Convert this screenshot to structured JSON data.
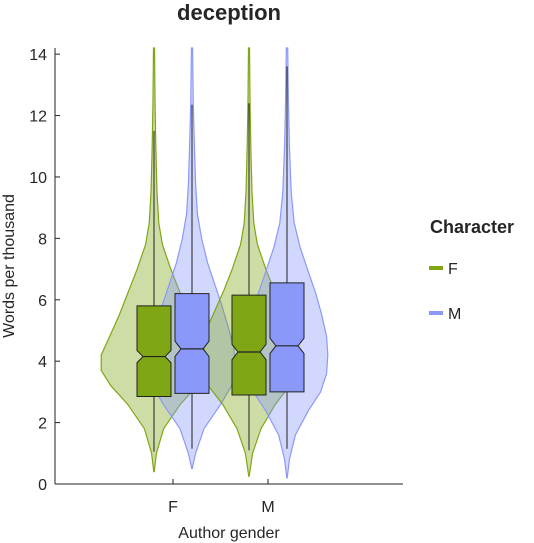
{
  "chart_data": {
    "type": "violin",
    "title": "deception",
    "xlabel": "Author gender",
    "ylabel": "Words per thousand",
    "ylim": [
      0,
      14.2
    ],
    "yticks": [
      0,
      2,
      4,
      6,
      8,
      10,
      12,
      14
    ],
    "categories": [
      "F",
      "M"
    ],
    "legend": {
      "title": "Character",
      "placement": "right",
      "entries": [
        {
          "label": "F",
          "color": "#7FA614"
        },
        {
          "label": "M",
          "color": "#8A98FA"
        }
      ]
    },
    "groups": [
      {
        "author": "F",
        "character": "F",
        "color": "#7FA614",
        "box": {
          "q1": 2.85,
          "median": 4.15,
          "q3": 5.8,
          "notch_low": 3.95,
          "notch_high": 4.35,
          "whisker_low": 1.05,
          "whisker_high": 11.5
        },
        "violin_max": 14.2,
        "violin": [
          [
            0.4,
            0.002
          ],
          [
            1.0,
            0.02
          ],
          [
            1.8,
            0.08
          ],
          [
            2.6,
            0.22
          ],
          [
            3.2,
            0.36
          ],
          [
            3.7,
            0.44
          ],
          [
            4.2,
            0.44
          ],
          [
            4.8,
            0.37
          ],
          [
            5.5,
            0.29
          ],
          [
            6.2,
            0.22
          ],
          [
            7.0,
            0.14
          ],
          [
            7.8,
            0.07
          ],
          [
            8.5,
            0.04
          ],
          [
            9.5,
            0.025
          ],
          [
            11.0,
            0.015
          ],
          [
            12.5,
            0.008
          ],
          [
            14.2,
            0.004
          ]
        ]
      },
      {
        "author": "F",
        "character": "M",
        "color": "#8A98FA",
        "box": {
          "q1": 2.95,
          "median": 4.4,
          "q3": 6.2,
          "notch_low": 4.15,
          "notch_high": 4.65,
          "whisker_low": 1.15,
          "whisker_high": 12.35
        },
        "violin_max": 14.2,
        "violin": [
          [
            0.5,
            0.002
          ],
          [
            1.0,
            0.03
          ],
          [
            1.8,
            0.1
          ],
          [
            2.6,
            0.24
          ],
          [
            3.2,
            0.33
          ],
          [
            3.8,
            0.36
          ],
          [
            4.4,
            0.35
          ],
          [
            5.0,
            0.31
          ],
          [
            5.8,
            0.25
          ],
          [
            6.5,
            0.19
          ],
          [
            7.2,
            0.13
          ],
          [
            8.0,
            0.08
          ],
          [
            8.8,
            0.045
          ],
          [
            9.8,
            0.03
          ],
          [
            11.0,
            0.02
          ],
          [
            12.5,
            0.01
          ],
          [
            14.2,
            0.005
          ]
        ]
      },
      {
        "author": "M",
        "character": "F",
        "color": "#7FA614",
        "box": {
          "q1": 2.9,
          "median": 4.3,
          "q3": 6.15,
          "notch_low": 4.05,
          "notch_high": 4.55,
          "whisker_low": 1.1,
          "whisker_high": 12.4
        },
        "violin_max": 14.2,
        "violin": [
          [
            0.25,
            0.002
          ],
          [
            1.0,
            0.03
          ],
          [
            1.8,
            0.1
          ],
          [
            2.6,
            0.22
          ],
          [
            3.2,
            0.34
          ],
          [
            3.8,
            0.4
          ],
          [
            4.3,
            0.41
          ],
          [
            4.9,
            0.37
          ],
          [
            5.6,
            0.29
          ],
          [
            6.3,
            0.21
          ],
          [
            7.0,
            0.14
          ],
          [
            7.8,
            0.07
          ],
          [
            8.5,
            0.04
          ],
          [
            9.5,
            0.025
          ],
          [
            11.0,
            0.015
          ],
          [
            12.5,
            0.008
          ],
          [
            14.2,
            0.004
          ]
        ]
      },
      {
        "author": "M",
        "character": "M",
        "color": "#8A98FA",
        "box": {
          "q1": 3.0,
          "median": 4.5,
          "q3": 6.55,
          "notch_low": 4.25,
          "notch_high": 4.75,
          "whisker_low": 1.15,
          "whisker_high": 13.6
        },
        "violin_max": 14.2,
        "violin": [
          [
            0.2,
            0.002
          ],
          [
            0.8,
            0.02
          ],
          [
            1.6,
            0.07
          ],
          [
            2.4,
            0.18
          ],
          [
            3.0,
            0.28
          ],
          [
            3.6,
            0.33
          ],
          [
            4.2,
            0.34
          ],
          [
            4.8,
            0.33
          ],
          [
            5.5,
            0.29
          ],
          [
            6.2,
            0.24
          ],
          [
            7.0,
            0.17
          ],
          [
            7.7,
            0.11
          ],
          [
            8.5,
            0.06
          ],
          [
            9.5,
            0.035
          ],
          [
            11.0,
            0.02
          ],
          [
            12.5,
            0.012
          ],
          [
            14.2,
            0.006
          ]
        ]
      }
    ]
  }
}
